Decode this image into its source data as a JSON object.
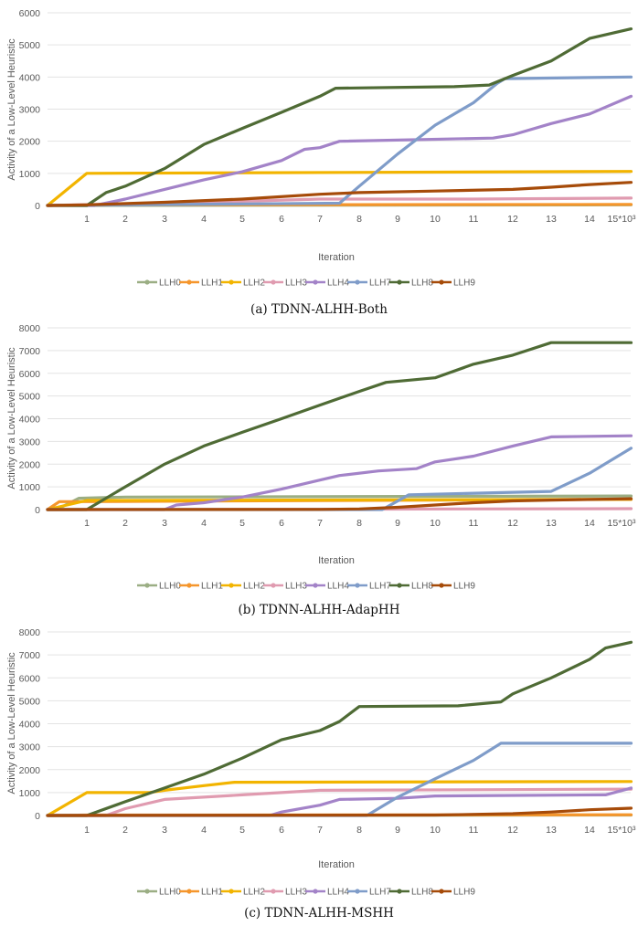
{
  "colors": {
    "LLH0": "#9bae84",
    "LLH1": "#f5962c",
    "LLH2": "#f2b400",
    "LLH3": "#e09bb0",
    "LLH4": "#a383c8",
    "LLH7": "#7f9cc9",
    "LLH8": "#4f6b35",
    "LLH9": "#a64b09"
  },
  "chart_data": [
    {
      "type": "line",
      "caption": "(a) TDNN-ALHH-Both",
      "xlabel": "Iteration",
      "ylabel": "Activity of a Low-Level Heuristic",
      "x_ticks": [
        "1",
        "2",
        "3",
        "4",
        "5",
        "6",
        "7",
        "8",
        "9",
        "10",
        "11",
        "12",
        "13",
        "14",
        "15*10³"
      ],
      "x_range": [
        0,
        15.3
      ],
      "y_ticks": [
        "0",
        "1000",
        "2000",
        "3000",
        "4000",
        "5000",
        "6000"
      ],
      "ylim": [
        0,
        6000
      ],
      "legend": [
        "LLH0",
        "LLH1",
        "LLH2",
        "LLH3",
        "LLH4",
        "LLH7",
        "LLH8",
        "LLH9"
      ],
      "series": [
        {
          "name": "LLH0",
          "points": [
            [
              0,
              0
            ],
            [
              15.3,
              20
            ]
          ]
        },
        {
          "name": "LLH1",
          "points": [
            [
              0,
              0
            ],
            [
              1,
              20
            ],
            [
              15.3,
              30
            ]
          ]
        },
        {
          "name": "LLH2",
          "points": [
            [
              0,
              0
            ],
            [
              1,
              1000
            ],
            [
              15.3,
              1060
            ]
          ]
        },
        {
          "name": "LLH3",
          "points": [
            [
              0,
              0
            ],
            [
              2,
              50
            ],
            [
              5,
              130
            ],
            [
              7,
              200
            ],
            [
              11,
              200
            ],
            [
              15.3,
              230
            ]
          ]
        },
        {
          "name": "LLH4",
          "points": [
            [
              0,
              0
            ],
            [
              1.2,
              0
            ],
            [
              2,
              200
            ],
            [
              3,
              500
            ],
            [
              4,
              800
            ],
            [
              5,
              1050
            ],
            [
              6,
              1400
            ],
            [
              6.6,
              1750
            ],
            [
              7,
              1800
            ],
            [
              7.5,
              2000
            ],
            [
              11.5,
              2100
            ],
            [
              12,
              2200
            ],
            [
              13,
              2550
            ],
            [
              14,
              2850
            ],
            [
              15.3,
              3400
            ]
          ]
        },
        {
          "name": "LLH7",
          "points": [
            [
              0,
              0
            ],
            [
              7.5,
              70
            ],
            [
              8,
              600
            ],
            [
              9,
              1600
            ],
            [
              10,
              2500
            ],
            [
              11,
              3200
            ],
            [
              11.6,
              3800
            ],
            [
              11.8,
              3950
            ],
            [
              15.3,
              4000
            ]
          ]
        },
        {
          "name": "LLH8",
          "points": [
            [
              0,
              0
            ],
            [
              1,
              0
            ],
            [
              1.5,
              400
            ],
            [
              2,
              600
            ],
            [
              3,
              1150
            ],
            [
              4,
              1900
            ],
            [
              5,
              2400
            ],
            [
              6,
              2900
            ],
            [
              7,
              3400
            ],
            [
              7.4,
              3650
            ],
            [
              10.5,
              3700
            ],
            [
              11.4,
              3750
            ],
            [
              12,
              4050
            ],
            [
              13,
              4500
            ],
            [
              14,
              5200
            ],
            [
              15.3,
              5500
            ]
          ]
        },
        {
          "name": "LLH9",
          "points": [
            [
              0,
              0
            ],
            [
              1,
              20
            ],
            [
              3,
              100
            ],
            [
              5,
              200
            ],
            [
              7,
              350
            ],
            [
              8,
              400
            ],
            [
              10,
              450
            ],
            [
              12,
              500
            ],
            [
              13,
              570
            ],
            [
              14,
              650
            ],
            [
              15.3,
              720
            ]
          ]
        }
      ]
    },
    {
      "type": "line",
      "caption": "(b) TDNN-ALHH-AdapHH",
      "xlabel": "Iteration",
      "ylabel": "Activity of a Low-Level Heuristic",
      "x_ticks": [
        "1",
        "2",
        "3",
        "4",
        "5",
        "6",
        "7",
        "8",
        "9",
        "10",
        "11",
        "12",
        "13",
        "14",
        "15*10³"
      ],
      "x_range": [
        0,
        15.3
      ],
      "y_ticks": [
        "0",
        "1000",
        "2000",
        "3000",
        "4000",
        "5000",
        "6000",
        "7000",
        "8000"
      ],
      "ylim": [
        0,
        8000
      ],
      "legend": [
        "LLH0",
        "LLH1",
        "LLH2",
        "LLH3",
        "LLH4",
        "LLH7",
        "LLH8",
        "LLH9"
      ],
      "series": [
        {
          "name": "LLH0",
          "points": [
            [
              0,
              0
            ],
            [
              0.4,
              150
            ],
            [
              0.8,
              500
            ],
            [
              2,
              550
            ],
            [
              15.3,
              600
            ]
          ]
        },
        {
          "name": "LLH1",
          "points": [
            [
              0,
              0
            ],
            [
              0.3,
              350
            ],
            [
              0.6,
              350
            ],
            [
              15.3,
              450
            ]
          ]
        },
        {
          "name": "LLH2",
          "points": [
            [
              0,
              0
            ],
            [
              1,
              400
            ],
            [
              15.3,
              450
            ]
          ]
        },
        {
          "name": "LLH3",
          "points": [
            [
              0,
              0
            ],
            [
              8.5,
              20
            ],
            [
              15.3,
              40
            ]
          ]
        },
        {
          "name": "LLH4",
          "points": [
            [
              0,
              0
            ],
            [
              3,
              0
            ],
            [
              3.3,
              200
            ],
            [
              4,
              300
            ],
            [
              5,
              550
            ],
            [
              6,
              900
            ],
            [
              7,
              1300
            ],
            [
              7.5,
              1500
            ],
            [
              8.5,
              1700
            ],
            [
              9.5,
              1800
            ],
            [
              10,
              2100
            ],
            [
              11,
              2350
            ],
            [
              12,
              2800
            ],
            [
              13,
              3200
            ],
            [
              15.3,
              3250
            ]
          ]
        },
        {
          "name": "LLH7",
          "points": [
            [
              0,
              0
            ],
            [
              8.6,
              0
            ],
            [
              9.3,
              650
            ],
            [
              13,
              800
            ],
            [
              14,
              1600
            ],
            [
              15.3,
              2700
            ]
          ]
        },
        {
          "name": "LLH8",
          "points": [
            [
              0,
              0
            ],
            [
              1,
              0
            ],
            [
              2,
              1000
            ],
            [
              3,
              2000
            ],
            [
              4,
              2800
            ],
            [
              5,
              3400
            ],
            [
              6,
              4000
            ],
            [
              7,
              4600
            ],
            [
              8,
              5200
            ],
            [
              8.7,
              5600
            ],
            [
              10,
              5800
            ],
            [
              11,
              6400
            ],
            [
              12,
              6800
            ],
            [
              13,
              7350
            ],
            [
              15.3,
              7350
            ]
          ]
        },
        {
          "name": "LLH9",
          "points": [
            [
              0,
              0
            ],
            [
              7,
              10
            ],
            [
              8,
              30
            ],
            [
              9,
              100
            ],
            [
              10,
              200
            ],
            [
              11,
              300
            ],
            [
              12,
              380
            ],
            [
              13,
              420
            ],
            [
              15.3,
              480
            ]
          ]
        }
      ]
    },
    {
      "type": "line",
      "caption": "(c) TDNN-ALHH-MSHH",
      "xlabel": "Iteration",
      "ylabel": "Activity of a Low-Level Heuristic",
      "x_ticks": [
        "1",
        "2",
        "3",
        "4",
        "5",
        "6",
        "7",
        "8",
        "9",
        "10",
        "11",
        "12",
        "13",
        "14",
        "15*10³"
      ],
      "x_range": [
        0,
        15.3
      ],
      "y_ticks": [
        "0",
        "1000",
        "2000",
        "3000",
        "4000",
        "5000",
        "6000",
        "7000",
        "8000"
      ],
      "ylim": [
        0,
        8000
      ],
      "legend": [
        "LLH0",
        "LLH1",
        "LLH2",
        "LLH3",
        "LLH4",
        "LLH7",
        "LLH8",
        "LLH9"
      ],
      "series": [
        {
          "name": "LLH0",
          "points": [
            [
              0,
              0
            ],
            [
              15.3,
              20
            ]
          ]
        },
        {
          "name": "LLH1",
          "points": [
            [
              0,
              0
            ],
            [
              1,
              20
            ],
            [
              15.3,
              30
            ]
          ]
        },
        {
          "name": "LLH2",
          "points": [
            [
              0,
              0
            ],
            [
              1,
              1000
            ],
            [
              2.6,
              1000
            ],
            [
              3,
              1100
            ],
            [
              4,
              1300
            ],
            [
              4.8,
              1450
            ],
            [
              15.3,
              1480
            ]
          ]
        },
        {
          "name": "LLH3",
          "points": [
            [
              0,
              0
            ],
            [
              1.5,
              0
            ],
            [
              2,
              300
            ],
            [
              3,
              700
            ],
            [
              5,
              900
            ],
            [
              6,
              1000
            ],
            [
              7,
              1100
            ],
            [
              15.3,
              1150
            ]
          ]
        },
        {
          "name": "LLH4",
          "points": [
            [
              0,
              0
            ],
            [
              5.7,
              0
            ],
            [
              6,
              150
            ],
            [
              7,
              450
            ],
            [
              7.5,
              700
            ],
            [
              9,
              750
            ],
            [
              10,
              850
            ],
            [
              14.5,
              900
            ],
            [
              15.3,
              1200
            ]
          ]
        },
        {
          "name": "LLH7",
          "points": [
            [
              0,
              0
            ],
            [
              8.2,
              0
            ],
            [
              9,
              800
            ],
            [
              10,
              1600
            ],
            [
              11,
              2400
            ],
            [
              11.7,
              3150
            ],
            [
              15.3,
              3150
            ]
          ]
        },
        {
          "name": "LLH8",
          "points": [
            [
              0,
              0
            ],
            [
              1,
              0
            ],
            [
              2,
              600
            ],
            [
              3,
              1200
            ],
            [
              4,
              1800
            ],
            [
              5,
              2500
            ],
            [
              6,
              3300
            ],
            [
              7,
              3700
            ],
            [
              7.5,
              4100
            ],
            [
              8,
              4750
            ],
            [
              10.6,
              4780
            ],
            [
              11.7,
              4950
            ],
            [
              12,
              5300
            ],
            [
              13,
              6000
            ],
            [
              14,
              6800
            ],
            [
              14.5,
              7300
            ],
            [
              15.3,
              7550
            ]
          ]
        },
        {
          "name": "LLH9",
          "points": [
            [
              0,
              0
            ],
            [
              10,
              20
            ],
            [
              12,
              80
            ],
            [
              13,
              150
            ],
            [
              14,
              250
            ],
            [
              15.3,
              320
            ]
          ]
        }
      ]
    }
  ]
}
